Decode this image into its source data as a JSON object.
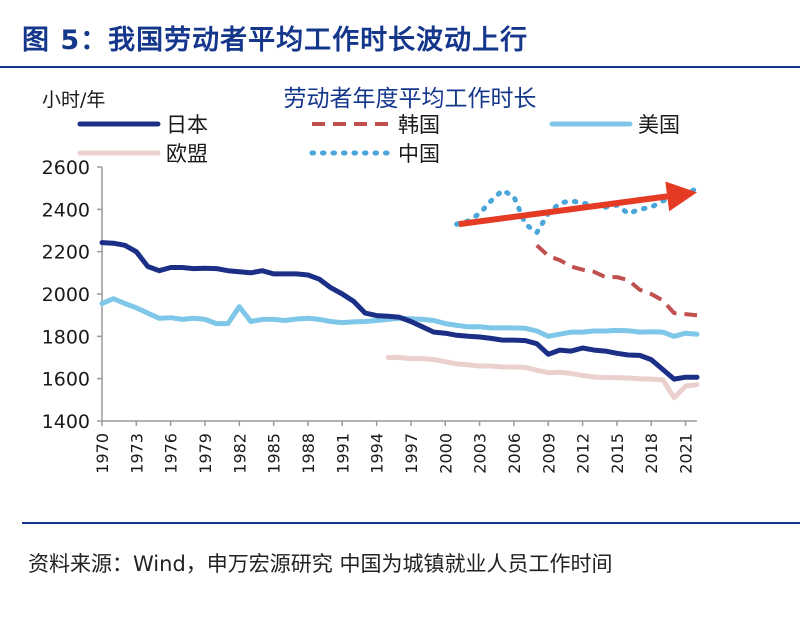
{
  "figure_title": "图 5：我国劳动者平均工作时长波动上行",
  "source_note": "资料来源：Wind，申万宏源研究 中国为城镇就业人员工作时间",
  "chart_data": {
    "type": "line",
    "title": "劳动者年度平均工作时长",
    "ylabel": "小时/年",
    "xlabel": "",
    "xlim": [
      1970,
      2022
    ],
    "ylim": [
      1400,
      2600
    ],
    "yticks": [
      1400,
      1600,
      1800,
      2000,
      2200,
      2400,
      2600
    ],
    "xtick_labels": [
      "1970",
      "1973",
      "1976",
      "1979",
      "1982",
      "1985",
      "1988",
      "1991",
      "1994",
      "1997",
      "2000",
      "2003",
      "2006",
      "2009",
      "2012",
      "2015",
      "2018",
      "2021"
    ],
    "grid": false,
    "legend_position": "top",
    "series": [
      {
        "name": "日本",
        "color": "#1b2f86",
        "style": "solid",
        "width": 5,
        "x": [
          1970,
          1971,
          1972,
          1973,
          1974,
          1975,
          1976,
          1977,
          1978,
          1979,
          1980,
          1981,
          1982,
          1983,
          1984,
          1985,
          1986,
          1987,
          1988,
          1989,
          1990,
          1991,
          1992,
          1993,
          1994,
          1995,
          1996,
          1997,
          1998,
          1999,
          2000,
          2001,
          2002,
          2003,
          2004,
          2005,
          2006,
          2007,
          2008,
          2009,
          2010,
          2011,
          2012,
          2013,
          2014,
          2015,
          2016,
          2017,
          2018,
          2019,
          2020,
          2021,
          2022
        ],
        "y": [
          2243,
          2240,
          2230,
          2200,
          2130,
          2110,
          2125,
          2125,
          2120,
          2122,
          2120,
          2110,
          2105,
          2100,
          2110,
          2095,
          2095,
          2095,
          2090,
          2070,
          2030,
          2000,
          1965,
          1910,
          1898,
          1895,
          1890,
          1870,
          1845,
          1820,
          1815,
          1805,
          1800,
          1797,
          1790,
          1782,
          1782,
          1780,
          1765,
          1715,
          1735,
          1730,
          1745,
          1735,
          1730,
          1720,
          1712,
          1710,
          1690,
          1644,
          1598,
          1607,
          1607
        ]
      },
      {
        "name": "韩国",
        "color": "#c0504d",
        "style": "dashed",
        "width": 4,
        "x": [
          2008,
          2009,
          2010,
          2011,
          2012,
          2013,
          2014,
          2015,
          2016,
          2017,
          2018,
          2019,
          2020,
          2021,
          2022
        ],
        "y": [
          2230,
          2180,
          2160,
          2130,
          2115,
          2105,
          2080,
          2080,
          2065,
          2020,
          2000,
          1970,
          1910,
          1905,
          1900
        ]
      },
      {
        "name": "美国",
        "color": "#7fc7e8",
        "style": "solid",
        "width": 5,
        "x": [
          1970,
          1971,
          1972,
          1973,
          1974,
          1975,
          1976,
          1977,
          1978,
          1979,
          1980,
          1981,
          1982,
          1983,
          1984,
          1985,
          1986,
          1987,
          1988,
          1989,
          1990,
          1991,
          1992,
          1993,
          1994,
          1995,
          1996,
          1997,
          1998,
          1999,
          2000,
          2001,
          2002,
          2003,
          2004,
          2005,
          2006,
          2007,
          2008,
          2009,
          2010,
          2011,
          2012,
          2013,
          2014,
          2015,
          2016,
          2017,
          2018,
          2019,
          2020,
          2021,
          2022
        ],
        "y": [
          1955,
          1978,
          1955,
          1935,
          1910,
          1885,
          1888,
          1880,
          1885,
          1880,
          1860,
          1860,
          1940,
          1870,
          1880,
          1880,
          1875,
          1882,
          1885,
          1880,
          1870,
          1865,
          1868,
          1870,
          1875,
          1880,
          1885,
          1883,
          1880,
          1875,
          1860,
          1852,
          1845,
          1845,
          1840,
          1840,
          1840,
          1838,
          1825,
          1800,
          1810,
          1820,
          1820,
          1825,
          1825,
          1828,
          1826,
          1820,
          1822,
          1820,
          1800,
          1815,
          1810
        ]
      },
      {
        "name": "欧盟",
        "color": "#ead1cd",
        "style": "solid",
        "width": 5,
        "x": [
          1995,
          1996,
          1997,
          1998,
          1999,
          2000,
          2001,
          2002,
          2003,
          2004,
          2005,
          2006,
          2007,
          2008,
          2009,
          2010,
          2011,
          2012,
          2013,
          2014,
          2015,
          2016,
          2017,
          2018,
          2019,
          2020,
          2021,
          2022
        ],
        "y": [
          1700,
          1700,
          1695,
          1695,
          1690,
          1680,
          1670,
          1665,
          1660,
          1660,
          1655,
          1655,
          1653,
          1640,
          1628,
          1630,
          1625,
          1615,
          1608,
          1605,
          1605,
          1603,
          1600,
          1598,
          1595,
          1510,
          1565,
          1572
        ]
      },
      {
        "name": "中国",
        "color": "#4aa5d9",
        "style": "dotted",
        "width": 5,
        "x": [
          2001,
          2002,
          2003,
          2004,
          2005,
          2006,
          2007,
          2008,
          2009,
          2010,
          2011,
          2012,
          2013,
          2014,
          2015,
          2016,
          2017,
          2018,
          2019,
          2020,
          2021,
          2022
        ],
        "y": [
          2330,
          2345,
          2380,
          2440,
          2490,
          2460,
          2330,
          2290,
          2380,
          2430,
          2440,
          2430,
          2420,
          2410,
          2420,
          2380,
          2400,
          2410,
          2440,
          2460,
          2470,
          2500
        ]
      }
    ],
    "annotations": [
      {
        "type": "arrow",
        "color": "#e53b24",
        "from": [
          2001.2,
          2330
        ],
        "to": [
          2022,
          2480
        ]
      }
    ]
  }
}
